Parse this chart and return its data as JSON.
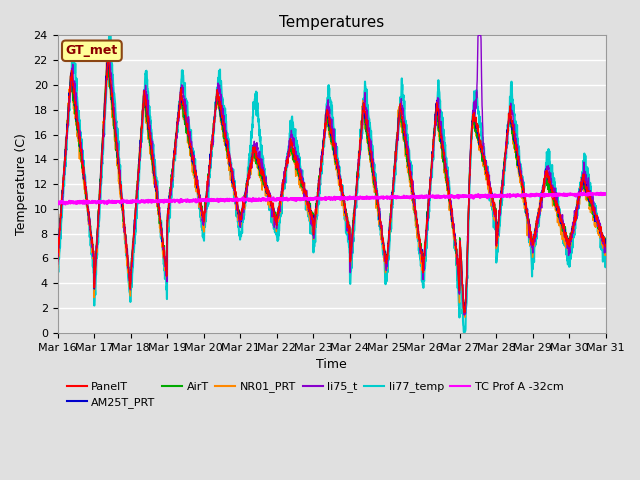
{
  "title": "Temperatures",
  "xlabel": "Time",
  "ylabel": "Temperature (C)",
  "ylim": [
    0,
    24
  ],
  "yticks": [
    0,
    2,
    4,
    6,
    8,
    10,
    12,
    14,
    16,
    18,
    20,
    22,
    24
  ],
  "xtick_labels": [
    "Mar 16",
    "Mar 17",
    "Mar 18",
    "Mar 19",
    "Mar 20",
    "Mar 21",
    "Mar 22",
    "Mar 23",
    "Mar 24",
    "Mar 25",
    "Mar 26",
    "Mar 27",
    "Mar 28",
    "Mar 29",
    "Mar 30",
    "Mar 31"
  ],
  "bg_color": "#e0e0e0",
  "plot_bg_color": "#e8e8e8",
  "grid_color": "#ffffff",
  "annotation_text": "GT_met",
  "annotation_bbox_facecolor": "#ffff99",
  "annotation_bbox_edgecolor": "#8B4513",
  "annotation_text_color": "#8B0000",
  "series": {
    "PanelT": {
      "color": "#ff0000",
      "lw": 1.0
    },
    "AM25T_PRT": {
      "color": "#0000cc",
      "lw": 1.0
    },
    "AirT": {
      "color": "#00aa00",
      "lw": 1.0
    },
    "NR01_PRT": {
      "color": "#ff8800",
      "lw": 1.0
    },
    "li75_t": {
      "color": "#8800cc",
      "lw": 1.0
    },
    "li77_temp": {
      "color": "#00cccc",
      "lw": 1.5
    },
    "TC Prof A -32cm": {
      "color": "#ff00ff",
      "lw": 1.8
    }
  }
}
